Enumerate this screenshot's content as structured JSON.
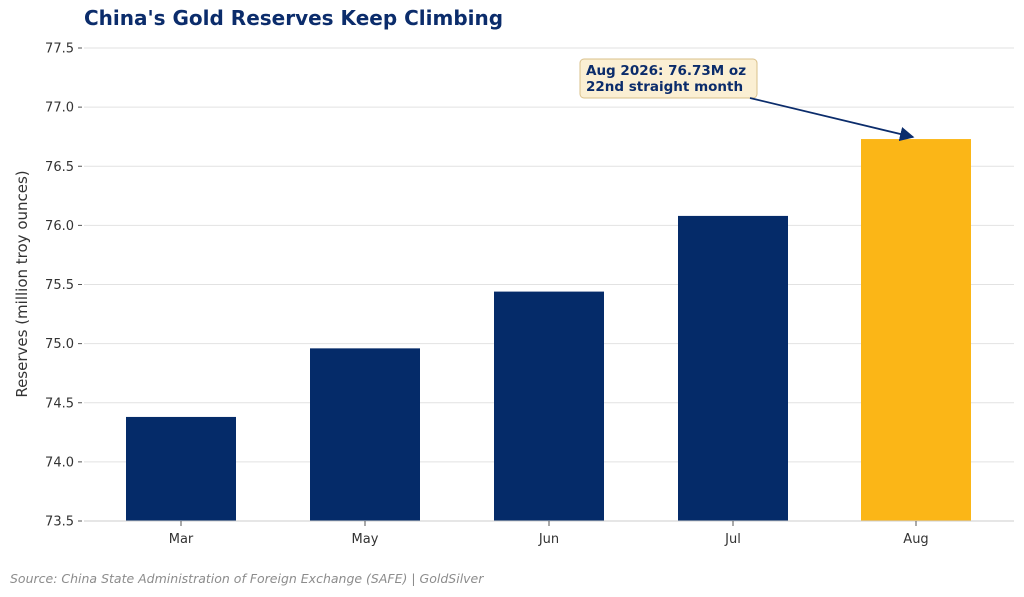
{
  "chart_data": {
    "type": "bar",
    "title": "China's Gold Reserves Keep Climbing",
    "ylabel": "Reserves (million troy ounces)",
    "xlabel": "",
    "categories": [
      "Mar",
      "May",
      "Jun",
      "Jul",
      "Aug"
    ],
    "values": [
      74.38,
      74.96,
      75.44,
      76.08,
      76.73
    ],
    "ylim": [
      73.5,
      77.5
    ],
    "yticks": [
      "73.5",
      "74.0",
      "74.5",
      "75.0",
      "75.5",
      "76.0",
      "76.5",
      "77.0",
      "77.5"
    ],
    "grid": true,
    "colors": {
      "bar": "#052b69",
      "highlight": "#fbb617",
      "annotation_box": "#fbefd3",
      "annotation_border": "#d9c08b"
    },
    "highlight_index": 4,
    "annotation": {
      "line1": "Aug 2026: 76.73M oz",
      "line2": "22nd straight month"
    }
  },
  "source": "Source: China State Administration of Foreign Exchange (SAFE) | GoldSilver"
}
